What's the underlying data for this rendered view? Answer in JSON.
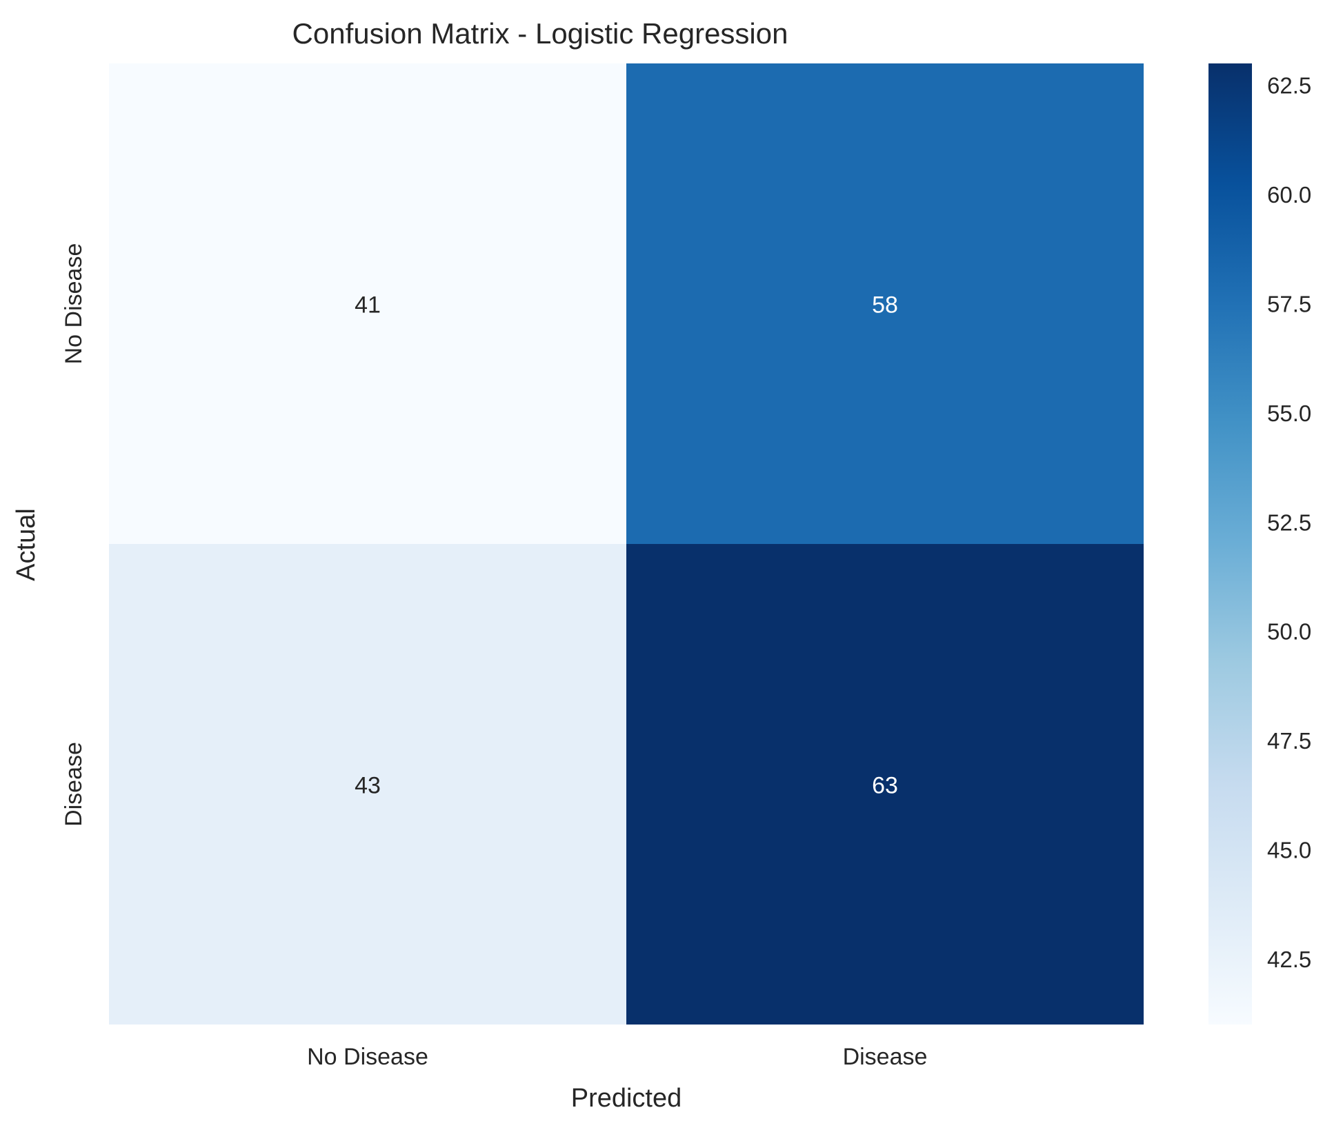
{
  "chart_data": {
    "type": "heatmap",
    "title": "Confusion Matrix - Logistic Regression",
    "xlabel": "Predicted",
    "ylabel": "Actual",
    "x_categories": [
      "No Disease",
      "Disease"
    ],
    "y_categories": [
      "No Disease",
      "Disease"
    ],
    "values": [
      [
        41,
        58
      ],
      [
        43,
        63
      ]
    ],
    "colormap": "Blues",
    "color_range": [
      41,
      63
    ],
    "colorbar": {
      "ticks": [
        42.5,
        45.0,
        47.5,
        50.0,
        52.5,
        55.0,
        57.5,
        60.0,
        62.5
      ],
      "tick_labels": [
        "42.5",
        "45.0",
        "47.5",
        "50.0",
        "52.5",
        "55.0",
        "57.5",
        "60.0",
        "62.5"
      ]
    },
    "colors": {
      "low": "#f7fbff",
      "high": "#08306b",
      "annotation_light": "#ffffff",
      "annotation_dark": "#262626",
      "text": "#262626"
    },
    "grid": false
  }
}
